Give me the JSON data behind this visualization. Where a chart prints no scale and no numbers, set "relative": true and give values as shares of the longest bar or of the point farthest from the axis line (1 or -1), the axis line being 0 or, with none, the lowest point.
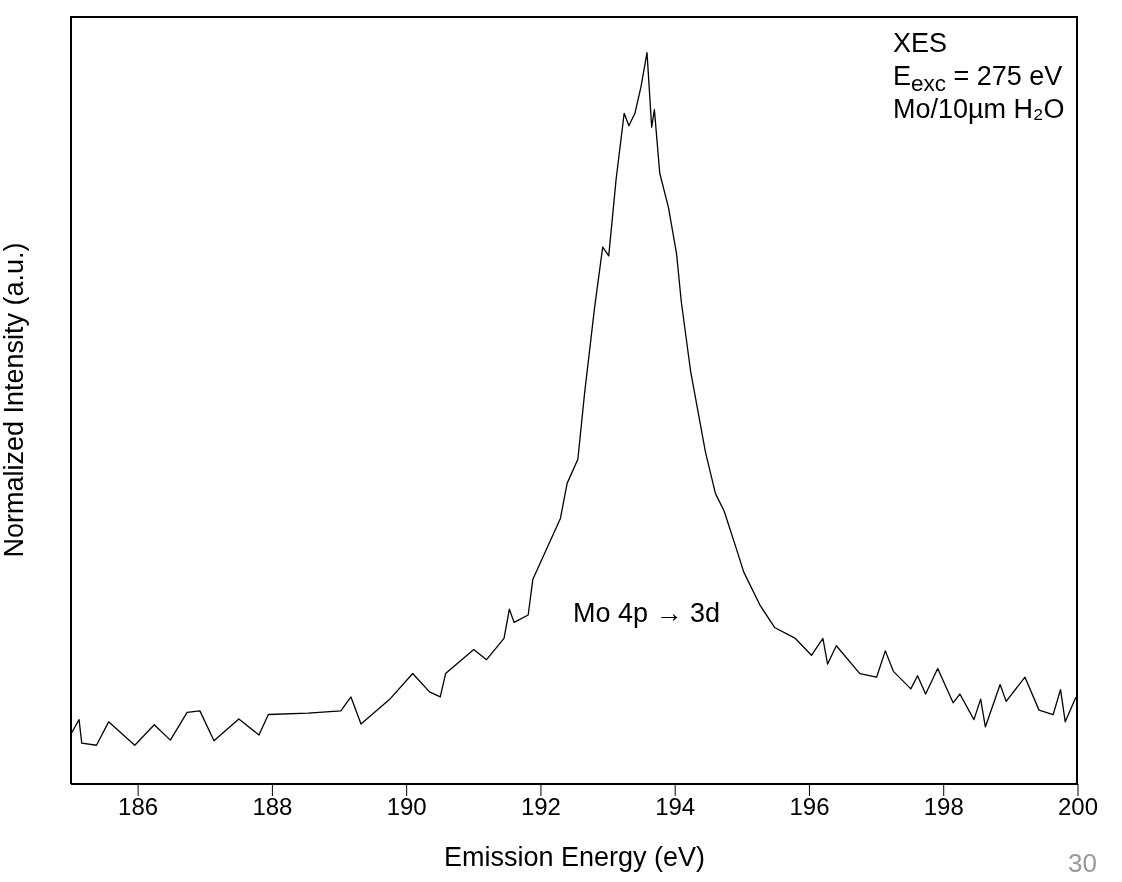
{
  "chart_data": {
    "type": "line",
    "xlabel": "Emission Energy (eV)",
    "ylabel": "Normalized Intensity (a.u.)",
    "relative": true,
    "xlim": [
      185,
      200
    ],
    "xticks": [
      186,
      188,
      190,
      192,
      194,
      196,
      198,
      200
    ],
    "grid": false,
    "legend": false,
    "marker": "none",
    "line_style": "solid",
    "annotations": [
      "XES",
      "E$_{exc}$ = 275 eV",
      "Mo/10µm H₂O",
      "Mo 4p → 3d",
      "30"
    ],
    "series": [
      {
        "color": "#000000",
        "x": [
          185.01,
          185.12,
          185.16,
          185.38,
          185.56,
          185.95,
          186.24,
          186.48,
          186.73,
          186.92,
          187.13,
          187.5,
          187.8,
          187.94,
          188.53,
          189.02,
          189.17,
          189.32,
          189.76,
          190.09,
          190.34,
          190.5,
          190.58,
          191.0,
          191.19,
          191.45,
          191.53,
          191.6,
          191.81,
          191.88,
          192.29,
          192.39,
          192.55,
          192.65,
          192.8,
          192.92,
          193.01,
          193.12,
          193.24,
          193.31,
          193.4,
          193.49,
          193.58,
          193.65,
          193.69,
          193.77,
          193.9,
          194.02,
          194.09,
          194.23,
          194.45,
          194.6,
          194.73,
          194.92,
          195.02,
          195.26,
          195.48,
          195.79,
          196.03,
          196.2,
          196.27,
          196.4,
          196.75,
          197.0,
          197.13,
          197.25,
          197.51,
          197.61,
          197.73,
          197.91,
          198.14,
          198.24,
          198.45,
          198.55,
          198.62,
          198.84,
          198.93,
          199.21,
          199.42,
          199.63,
          199.74,
          199.81,
          199.97
        ],
        "values": [
          0.07,
          0.088,
          0.056,
          0.053,
          0.085,
          0.053,
          0.081,
          0.06,
          0.098,
          0.1,
          0.059,
          0.089,
          0.067,
          0.095,
          0.097,
          0.1,
          0.119,
          0.082,
          0.117,
          0.151,
          0.126,
          0.119,
          0.151,
          0.184,
          0.17,
          0.199,
          0.239,
          0.221,
          0.231,
          0.28,
          0.363,
          0.411,
          0.444,
          0.534,
          0.652,
          0.734,
          0.722,
          0.827,
          0.917,
          0.9,
          0.917,
          0.953,
          1,
          0.898,
          0.922,
          0.835,
          0.788,
          0.725,
          0.66,
          0.564,
          0.454,
          0.397,
          0.373,
          0.319,
          0.29,
          0.245,
          0.214,
          0.199,
          0.176,
          0.199,
          0.164,
          0.189,
          0.151,
          0.146,
          0.182,
          0.154,
          0.13,
          0.148,
          0.123,
          0.158,
          0.111,
          0.123,
          0.088,
          0.116,
          0.078,
          0.136,
          0.113,
          0.146,
          0.101,
          0.095,
          0.129,
          0.085,
          0.119
        ]
      }
    ]
  }
}
